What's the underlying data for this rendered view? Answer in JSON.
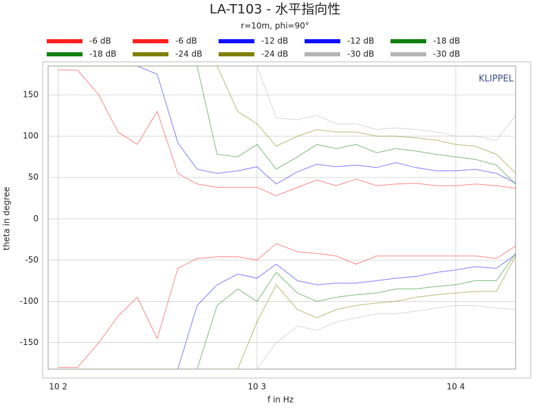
{
  "chart_data": {
    "type": "line",
    "title": "LA-T103 - 水平指向性",
    "subtitle": "r=10m, phi=90°",
    "annotation": "KLIPPEL",
    "xlabel": "f in Hz",
    "ylabel": "theta in degree",
    "xscale": "log",
    "grid": true,
    "xlim": [
      89,
      20000
    ],
    "ylim": [
      -182,
      185
    ],
    "xticks": [
      {
        "value": 100,
        "label": "10 2"
      },
      {
        "value": 1000,
        "label": "10 3"
      },
      {
        "value": 10000,
        "label": "10 4"
      }
    ],
    "yticks": [
      -150,
      -100,
      -50,
      0,
      50,
      100,
      150
    ],
    "x": [
      100,
      125,
      160,
      200,
      250,
      315,
      400,
      500,
      630,
      800,
      1000,
      1250,
      1600,
      2000,
      2500,
      3150,
      4000,
      5000,
      6300,
      8000,
      10000,
      12500,
      16000,
      20000
    ],
    "series": [
      {
        "name": "-6 dB",
        "color": "#ff2020",
        "values": [
          180,
          180,
          150,
          105,
          90,
          130,
          55,
          42,
          38,
          38,
          38,
          28,
          38,
          47,
          40,
          48,
          40,
          42,
          43,
          40,
          40,
          42,
          40,
          37
        ]
      },
      {
        "name": "-6 dB",
        "color": "#ff2020",
        "values": [
          -180,
          -180,
          -150,
          -118,
          -95,
          -145,
          -60,
          -48,
          -46,
          -46,
          -50,
          -30,
          -40,
          -42,
          -45,
          -55,
          -45,
          -45,
          -45,
          -45,
          -45,
          -45,
          -48,
          -33
        ]
      },
      {
        "name": "-12 dB",
        "color": "#1010ff",
        "values": [
          185,
          185,
          185,
          185,
          185,
          175,
          92,
          60,
          55,
          58,
          63,
          42,
          57,
          66,
          63,
          65,
          62,
          68,
          62,
          58,
          58,
          60,
          55,
          43
        ]
      },
      {
        "name": "-12 dB",
        "color": "#1010ff",
        "values": [
          -182,
          -182,
          -182,
          -182,
          -182,
          -182,
          -182,
          -105,
          -80,
          -67,
          -72,
          -55,
          -75,
          -80,
          -78,
          -78,
          -75,
          -72,
          -70,
          -65,
          -62,
          -58,
          -60,
          -43
        ]
      },
      {
        "name": "-18 dB",
        "color": "#108010",
        "values": [
          185,
          185,
          185,
          185,
          185,
          185,
          185,
          185,
          78,
          75,
          90,
          60,
          75,
          90,
          85,
          90,
          80,
          85,
          82,
          78,
          75,
          72,
          65,
          42
        ]
      },
      {
        "name": "-18 dB",
        "color": "#108010",
        "values": [
          -182,
          -182,
          -182,
          -182,
          -182,
          -182,
          -182,
          -182,
          -105,
          -85,
          -100,
          -65,
          -90,
          -100,
          -95,
          -92,
          -90,
          -85,
          -85,
          -82,
          -80,
          -75,
          -75,
          -42
        ]
      },
      {
        "name": "-24 dB",
        "color": "#808000",
        "values": [
          185,
          185,
          185,
          185,
          185,
          185,
          185,
          185,
          185,
          130,
          115,
          88,
          100,
          108,
          105,
          105,
          100,
          100,
          98,
          95,
          90,
          88,
          78,
          55
        ]
      },
      {
        "name": "-24 dB",
        "color": "#808000",
        "values": [
          -182,
          -182,
          -182,
          -182,
          -182,
          -182,
          -182,
          -182,
          -182,
          -182,
          -125,
          -80,
          -110,
          -120,
          -110,
          -105,
          -102,
          -100,
          -95,
          -92,
          -90,
          -88,
          -88,
          -45
        ]
      },
      {
        "name": "-30 dB",
        "color": "#b4b4b4",
        "values": [
          185,
          185,
          185,
          185,
          185,
          185,
          185,
          185,
          185,
          185,
          185,
          122,
          120,
          125,
          115,
          115,
          108,
          110,
          108,
          105,
          100,
          100,
          95,
          125
        ]
      },
      {
        "name": "-30 dB",
        "color": "#b4b4b4",
        "values": [
          -182,
          -182,
          -182,
          -182,
          -182,
          -182,
          -182,
          -182,
          -182,
          -182,
          -182,
          -150,
          -130,
          -135,
          -125,
          -120,
          -115,
          -115,
          -112,
          -108,
          -105,
          -105,
          -108,
          -110
        ]
      }
    ]
  }
}
